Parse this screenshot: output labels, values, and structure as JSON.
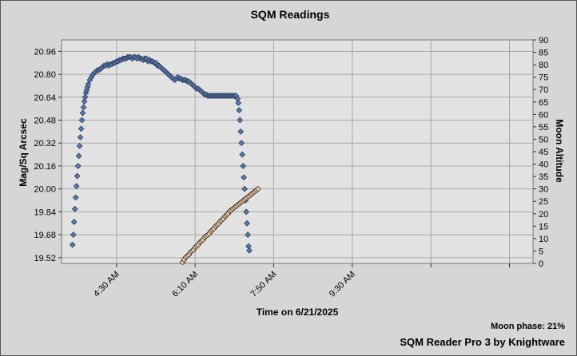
{
  "footer": {
    "moon_phase": "Moon phase: 21%",
    "brand": "SQM Reader Pro 3 by Knightware"
  },
  "chart_data": {
    "type": "scatter",
    "title": "SQM Readings",
    "xlabel": "Time on 6/21/2025",
    "ylabel": "Mag/Sq Arcsec",
    "y2label": "Moon Altitude",
    "xticks": [
      "4:30 AM",
      "6:10 AM",
      "7:50 AM",
      "9:30 AM"
    ],
    "xtick_minutes": [
      270,
      370,
      470,
      570
    ],
    "xlim_minutes": [
      200,
      800
    ],
    "ylim": [
      19.48,
      21.04
    ],
    "yticks": [
      "19.52",
      "19.68",
      "19.84",
      "20.00",
      "20.16",
      "20.32",
      "20.48",
      "20.64",
      "20.80",
      "20.96"
    ],
    "y2lim": [
      0,
      90
    ],
    "y2ticks": [
      "0",
      "5",
      "10",
      "15",
      "20",
      "25",
      "30",
      "35",
      "40",
      "45",
      "50",
      "55",
      "60",
      "65",
      "70",
      "75",
      "80",
      "85",
      "90"
    ],
    "grid": true,
    "colors": {
      "sqm": "#5a7ab0",
      "moon": "#f4d4b4",
      "plot_bg": "#e2e2e2",
      "grid": "#a8a8a8"
    },
    "series": [
      {
        "axis": "left",
        "marker": "diamond",
        "points": [
          [
            214,
            19.61
          ],
          [
            215,
            19.68
          ],
          [
            216,
            19.77
          ],
          [
            217,
            19.86
          ],
          [
            218,
            19.94
          ],
          [
            219,
            20.02
          ],
          [
            220,
            20.09
          ],
          [
            221,
            20.16
          ],
          [
            222,
            20.23
          ],
          [
            223,
            20.3
          ],
          [
            224,
            20.36
          ],
          [
            225,
            20.42
          ],
          [
            226,
            20.48
          ],
          [
            227,
            20.53
          ],
          [
            228,
            20.57
          ],
          [
            229,
            20.61
          ],
          [
            230,
            20.64
          ],
          [
            231,
            20.67
          ],
          [
            232,
            20.69
          ],
          [
            233,
            20.71
          ],
          [
            234,
            20.73
          ],
          [
            236,
            20.76
          ],
          [
            238,
            20.78
          ],
          [
            240,
            20.8
          ],
          [
            242,
            20.81
          ],
          [
            244,
            20.82
          ],
          [
            246,
            20.83
          ],
          [
            248,
            20.83
          ],
          [
            250,
            20.84
          ],
          [
            252,
            20.85
          ],
          [
            254,
            20.86
          ],
          [
            256,
            20.86
          ],
          [
            258,
            20.87
          ],
          [
            260,
            20.86
          ],
          [
            262,
            20.87
          ],
          [
            264,
            20.87
          ],
          [
            266,
            20.88
          ],
          [
            268,
            20.88
          ],
          [
            270,
            20.89
          ],
          [
            272,
            20.89
          ],
          [
            274,
            20.9
          ],
          [
            276,
            20.9
          ],
          [
            278,
            20.91
          ],
          [
            280,
            20.91
          ],
          [
            282,
            20.91
          ],
          [
            284,
            20.92
          ],
          [
            286,
            20.92
          ],
          [
            288,
            20.92
          ],
          [
            290,
            20.91
          ],
          [
            292,
            20.92
          ],
          [
            294,
            20.92
          ],
          [
            296,
            20.91
          ],
          [
            298,
            20.92
          ],
          [
            300,
            20.91
          ],
          [
            302,
            20.91
          ],
          [
            304,
            20.9
          ],
          [
            306,
            20.91
          ],
          [
            308,
            20.91
          ],
          [
            310,
            20.89
          ],
          [
            312,
            20.9
          ],
          [
            314,
            20.89
          ],
          [
            316,
            20.89
          ],
          [
            318,
            20.88
          ],
          [
            320,
            20.88
          ],
          [
            322,
            20.86
          ],
          [
            324,
            20.86
          ],
          [
            326,
            20.85
          ],
          [
            328,
            20.84
          ],
          [
            330,
            20.83
          ],
          [
            332,
            20.82
          ],
          [
            334,
            20.81
          ],
          [
            336,
            20.8
          ],
          [
            338,
            20.79
          ],
          [
            340,
            20.78
          ],
          [
            342,
            20.77
          ],
          [
            344,
            20.76
          ],
          [
            346,
            20.77
          ],
          [
            348,
            20.78
          ],
          [
            350,
            20.77
          ],
          [
            352,
            20.77
          ],
          [
            354,
            20.76
          ],
          [
            356,
            20.76
          ],
          [
            358,
            20.76
          ],
          [
            360,
            20.75
          ],
          [
            362,
            20.75
          ],
          [
            364,
            20.74
          ],
          [
            366,
            20.73
          ],
          [
            368,
            20.72
          ],
          [
            370,
            20.71
          ],
          [
            372,
            20.7
          ],
          [
            374,
            20.7
          ],
          [
            376,
            20.69
          ],
          [
            378,
            20.68
          ],
          [
            380,
            20.67
          ],
          [
            382,
            20.66
          ],
          [
            384,
            20.66
          ],
          [
            386,
            20.65
          ],
          [
            388,
            20.65
          ],
          [
            390,
            20.65
          ],
          [
            392,
            20.65
          ],
          [
            394,
            20.65
          ],
          [
            396,
            20.65
          ],
          [
            398,
            20.65
          ],
          [
            400,
            20.65
          ],
          [
            402,
            20.65
          ],
          [
            404,
            20.65
          ],
          [
            406,
            20.65
          ],
          [
            408,
            20.65
          ],
          [
            410,
            20.65
          ],
          [
            412,
            20.65
          ],
          [
            414,
            20.65
          ],
          [
            416,
            20.65
          ],
          [
            418,
            20.65
          ],
          [
            420,
            20.65
          ],
          [
            422,
            20.65
          ],
          [
            424,
            20.63
          ],
          [
            425,
            20.6
          ],
          [
            426,
            20.55
          ],
          [
            427,
            20.48
          ],
          [
            428,
            20.4
          ],
          [
            429,
            20.32
          ],
          [
            430,
            20.24
          ],
          [
            431,
            20.16
          ],
          [
            432,
            20.08
          ],
          [
            433,
            20.0
          ],
          [
            434,
            19.92
          ],
          [
            435,
            19.84
          ],
          [
            436,
            19.76
          ],
          [
            437,
            19.68
          ],
          [
            438,
            19.6
          ],
          [
            439,
            19.57
          ]
        ]
      },
      {
        "axis": "right",
        "marker": "diamond",
        "points": [
          [
            354,
            0.5
          ],
          [
            356,
            1.5
          ],
          [
            358,
            2.5
          ],
          [
            360,
            3.0
          ],
          [
            362,
            3.5
          ],
          [
            364,
            4.5
          ],
          [
            366,
            5.0
          ],
          [
            368,
            5.5
          ],
          [
            370,
            6.5
          ],
          [
            372,
            7.0
          ],
          [
            374,
            7.5
          ],
          [
            376,
            8.5
          ],
          [
            378,
            9.0
          ],
          [
            380,
            9.5
          ],
          [
            382,
            10.5
          ],
          [
            384,
            11.0
          ],
          [
            386,
            11.5
          ],
          [
            388,
            12.0
          ],
          [
            390,
            13.0
          ],
          [
            392,
            13.5
          ],
          [
            394,
            14.0
          ],
          [
            396,
            15.0
          ],
          [
            398,
            15.5
          ],
          [
            400,
            16.0
          ],
          [
            402,
            17.0
          ],
          [
            404,
            17.5
          ],
          [
            406,
            18.0
          ],
          [
            408,
            19.0
          ],
          [
            410,
            19.5
          ],
          [
            412,
            20.0
          ],
          [
            414,
            21.0
          ],
          [
            416,
            21.5
          ],
          [
            418,
            22.0
          ],
          [
            420,
            22.5
          ],
          [
            422,
            23.0
          ],
          [
            424,
            23.5
          ],
          [
            426,
            24.0
          ],
          [
            428,
            24.5
          ],
          [
            430,
            25.0
          ],
          [
            432,
            25.5
          ],
          [
            434,
            26.0
          ],
          [
            436,
            26.5
          ],
          [
            438,
            27.0
          ],
          [
            440,
            27.5
          ],
          [
            442,
            28.0
          ],
          [
            444,
            28.5
          ],
          [
            446,
            29.0
          ],
          [
            448,
            29.5
          ],
          [
            450,
            30.0
          ]
        ]
      }
    ]
  }
}
